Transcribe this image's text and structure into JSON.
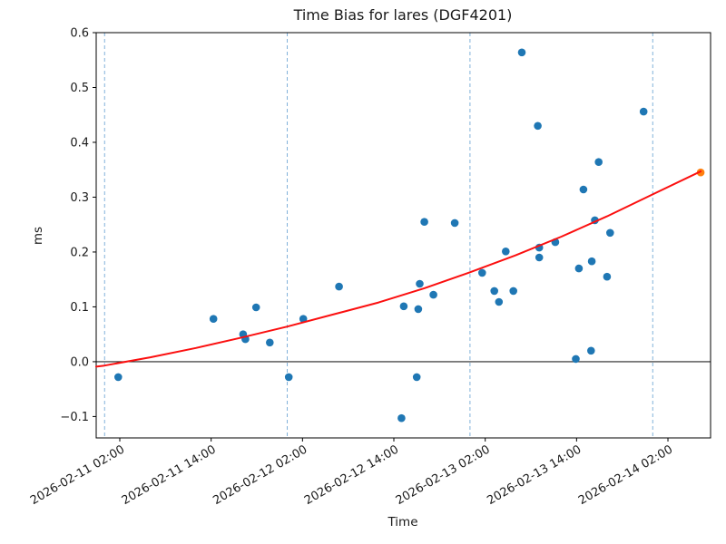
{
  "chart_data": {
    "type": "scatter",
    "title": "Time Bias for lares (DGF4201)",
    "xlabel": "Time",
    "ylabel": "ms",
    "x_axis": {
      "unit": "datetime",
      "tick_labels": [
        "2026-02-11 02:00",
        "2026-02-11 14:00",
        "2026-02-12 02:00",
        "2026-02-12 14:00",
        "2026-02-13 02:00",
        "2026-02-13 14:00",
        "2026-02-14 02:00"
      ],
      "tick_hours_after_2026_02_11_0000": [
        2,
        14,
        26,
        38,
        50,
        62,
        74
      ],
      "range_hours_after_2026_02_11_0000": [
        -1.1,
        79.6
      ],
      "day_boundary_gridline_hours": [
        0,
        24,
        48,
        72
      ],
      "label_rotation_deg": 30,
      "gridline_style": "dashed"
    },
    "y_axis": {
      "tick_labels": [
        "−0.1",
        "0.0",
        "0.1",
        "0.2",
        "0.3",
        "0.4",
        "0.5",
        "0.6"
      ],
      "tick_values": [
        -0.1,
        0.0,
        0.1,
        0.2,
        0.3,
        0.4,
        0.5,
        0.6
      ],
      "range": [
        -0.139,
        0.6
      ],
      "zero_line": true
    },
    "series": [
      {
        "name": "time-bias-observations",
        "type": "scatter",
        "color": "#1f77b4",
        "points": [
          {
            "time": "2026-02-11 01:48",
            "ms": -0.028
          },
          {
            "time": "2026-02-11 14:18",
            "ms": 0.078
          },
          {
            "time": "2026-02-11 18:12",
            "ms": 0.05
          },
          {
            "time": "2026-02-11 18:30",
            "ms": 0.041
          },
          {
            "time": "2026-02-11 19:54",
            "ms": 0.099
          },
          {
            "time": "2026-02-11 21:42",
            "ms": 0.035
          },
          {
            "time": "2026-02-12 00:12",
            "ms": -0.028
          },
          {
            "time": "2026-02-12 02:06",
            "ms": 0.078
          },
          {
            "time": "2026-02-12 06:48",
            "ms": 0.137
          },
          {
            "time": "2026-02-12 15:00",
            "ms": -0.103
          },
          {
            "time": "2026-02-12 15:18",
            "ms": 0.101
          },
          {
            "time": "2026-02-12 17:00",
            "ms": -0.028
          },
          {
            "time": "2026-02-12 17:12",
            "ms": 0.096
          },
          {
            "time": "2026-02-12 17:24",
            "ms": 0.142
          },
          {
            "time": "2026-02-12 18:00",
            "ms": 0.255
          },
          {
            "time": "2026-02-12 19:12",
            "ms": 0.122
          },
          {
            "time": "2026-02-12 22:00",
            "ms": 0.253
          },
          {
            "time": "2026-02-13 01:36",
            "ms": 0.162
          },
          {
            "time": "2026-02-13 03:12",
            "ms": 0.129
          },
          {
            "time": "2026-02-13 03:48",
            "ms": 0.109
          },
          {
            "time": "2026-02-13 04:42",
            "ms": 0.201
          },
          {
            "time": "2026-02-13 05:42",
            "ms": 0.129
          },
          {
            "time": "2026-02-13 06:48",
            "ms": 0.564
          },
          {
            "time": "2026-02-13 08:54",
            "ms": 0.43
          },
          {
            "time": "2026-02-13 09:06",
            "ms": 0.208
          },
          {
            "time": "2026-02-13 09:06",
            "ms": 0.19
          },
          {
            "time": "2026-02-13 11:12",
            "ms": 0.218
          },
          {
            "time": "2026-02-13 13:54",
            "ms": 0.005
          },
          {
            "time": "2026-02-13 14:18",
            "ms": 0.17
          },
          {
            "time": "2026-02-13 14:54",
            "ms": 0.314
          },
          {
            "time": "2026-02-13 15:54",
            "ms": 0.02
          },
          {
            "time": "2026-02-13 16:00",
            "ms": 0.183
          },
          {
            "time": "2026-02-13 16:24",
            "ms": 0.258
          },
          {
            "time": "2026-02-13 16:54",
            "ms": 0.364
          },
          {
            "time": "2026-02-13 18:00",
            "ms": 0.155
          },
          {
            "time": "2026-02-13 18:24",
            "ms": 0.235
          },
          {
            "time": "2026-02-13 22:48",
            "ms": 0.456
          }
        ]
      },
      {
        "name": "latest-observation",
        "type": "scatter",
        "color": "#ff7f0e",
        "points": [
          {
            "time": "2026-02-14 06:18",
            "ms": 0.345
          }
        ]
      },
      {
        "name": "trend-fit",
        "type": "line",
        "color": "#fb0f0f",
        "points": [
          {
            "time": "2026-02-10 22:54",
            "ms": -0.009
          },
          {
            "time": "2026-02-11 00:00",
            "ms": -0.007
          },
          {
            "time": "2026-02-11 06:00",
            "ms": 0.008
          },
          {
            "time": "2026-02-11 12:00",
            "ms": 0.025
          },
          {
            "time": "2026-02-11 18:00",
            "ms": 0.044
          },
          {
            "time": "2026-02-12 00:00",
            "ms": 0.064
          },
          {
            "time": "2026-02-12 06:00",
            "ms": 0.086
          },
          {
            "time": "2026-02-12 12:00",
            "ms": 0.108
          },
          {
            "time": "2026-02-12 18:00",
            "ms": 0.134
          },
          {
            "time": "2026-02-13 00:00",
            "ms": 0.163
          },
          {
            "time": "2026-02-13 06:00",
            "ms": 0.194
          },
          {
            "time": "2026-02-13 12:00",
            "ms": 0.228
          },
          {
            "time": "2026-02-13 18:00",
            "ms": 0.265
          },
          {
            "time": "2026-02-14 00:00",
            "ms": 0.305
          },
          {
            "time": "2026-02-14 06:18",
            "ms": 0.347
          }
        ]
      }
    ]
  },
  "colors": {
    "scatter_point": "#1f77b4",
    "latest_point": "#ff7f0e",
    "trend_line": "#fb0f0f",
    "day_gridline": "#73a9d6",
    "zero_line": "#262626",
    "axis": "#000000",
    "background": "#ffffff"
  }
}
